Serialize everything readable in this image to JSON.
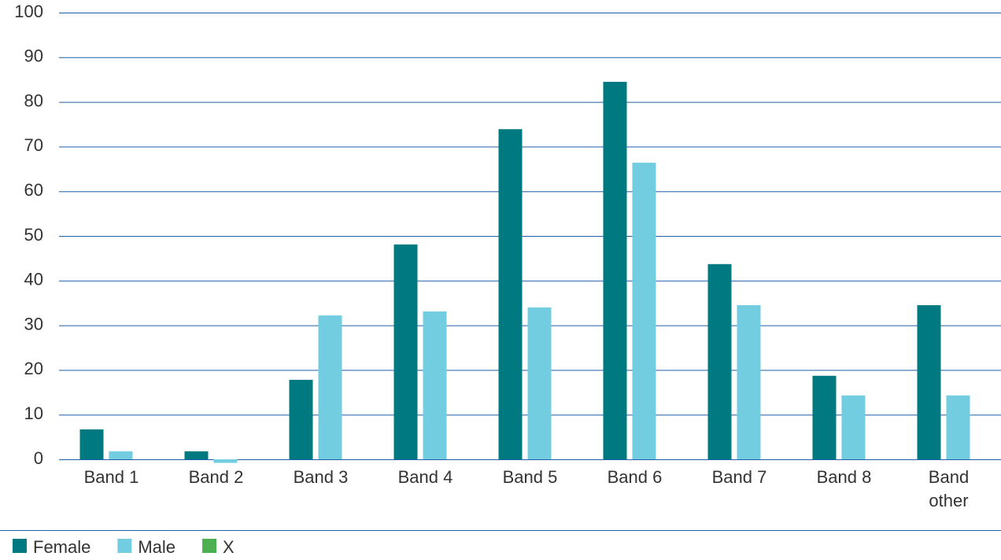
{
  "chart_data": {
    "type": "bar",
    "categories": [
      "Band 1",
      "Band 2",
      "Band 3",
      "Band 4",
      "Band 5",
      "Band 6",
      "Band 7",
      "Band 8",
      "Band other"
    ],
    "series": [
      {
        "name": "Female",
        "color": "#007a80",
        "values": [
          6.7,
          1.8,
          17.8,
          48.1,
          73.9,
          84.5,
          43.7,
          18.7,
          34.5
        ]
      },
      {
        "name": "Male",
        "color": "#72cde0",
        "values": [
          1.8,
          -0.8,
          32.2,
          33.1,
          34,
          66.4,
          34.5,
          14.3,
          14.3
        ]
      },
      {
        "name": "X",
        "color": "#4caf50",
        "values": [
          null,
          null,
          null,
          null,
          null,
          null,
          null,
          null,
          null
        ]
      }
    ],
    "ylim": [
      0,
      100
    ],
    "yticks": [
      0,
      10,
      20,
      30,
      40,
      50,
      60,
      70,
      80,
      90,
      100
    ],
    "grid": true,
    "legend": "bottom"
  }
}
